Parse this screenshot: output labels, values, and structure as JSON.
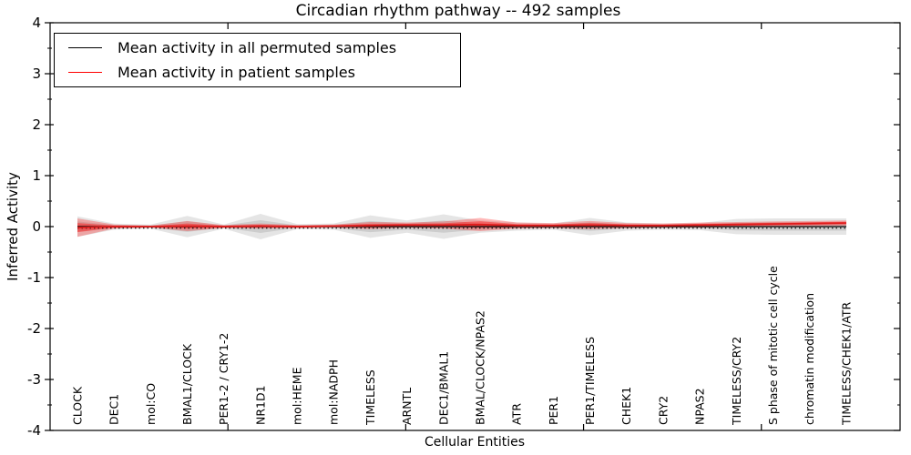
{
  "chart_data": {
    "type": "line",
    "title": "Circadian rhythm pathway -- 492 samples",
    "xlabel": "Cellular Entities",
    "ylabel": "Inferred Activity",
    "ylim": [
      -4,
      4
    ],
    "ytick_labels": [
      "4",
      "3",
      "2",
      "1",
      "0",
      "-1",
      "-2",
      "-3",
      "-4"
    ],
    "ytick_values": [
      4,
      3,
      2,
      1,
      0,
      -1,
      -2,
      -3,
      -4
    ],
    "yminor_values": [
      3.5,
      2.5,
      1.5,
      0.5,
      -0.5,
      -1.5,
      -2.5,
      -3.5
    ],
    "x_numeric_ticks": [
      5,
      10,
      15,
      20
    ],
    "x_numeric_range": [
      0,
      23.9
    ],
    "grid": false,
    "legend_position": "upper left",
    "categories": [
      "CLOCK",
      "DEC1",
      "mol:CO",
      "BMAL1/CLOCK",
      "PER1-2 / CRY1-2",
      "NR1D1",
      "mol:HEME",
      "mol:NADPH",
      "TIMELESS",
      "ARNTL",
      "DEC1/BMAL1",
      "BMAL/CLOCK/NPAS2",
      "ATR",
      "PER1",
      "PER1/TIMELESS",
      "CHEK1",
      "CRY2",
      "NPAS2",
      "TIMELESS/CRY2",
      "S phase of mitotic cell cycle",
      "chromatin modification",
      "TIMELESS/CHEK1/ATR"
    ],
    "series": [
      {
        "name": "Mean activity in all permuted samples",
        "color": "#000000",
        "band_color": "#888888",
        "style": "solid",
        "values": [
          0,
          0,
          0,
          0,
          0,
          0,
          0,
          0,
          0,
          0,
          0,
          0,
          0,
          0,
          0,
          0,
          0,
          0,
          0,
          0,
          0,
          0
        ],
        "band_halfwidth": [
          0.2,
          0.06,
          0.04,
          0.21,
          0.04,
          0.25,
          0.05,
          0.06,
          0.22,
          0.12,
          0.24,
          0.12,
          0.08,
          0.06,
          0.17,
          0.08,
          0.06,
          0.07,
          0.15,
          0.16,
          0.16,
          0.16
        ]
      },
      {
        "name": "Mean activity in patient samples",
        "color": "#e01b1b",
        "band_color": "#ff0000",
        "style": "solid",
        "values": [
          -0.02,
          0,
          0,
          0.01,
          0,
          0.01,
          0,
          0.01,
          0.02,
          0.03,
          0.03,
          0.04,
          0.02,
          0.02,
          0.03,
          0.02,
          0.02,
          0.03,
          0.04,
          0.05,
          0.06,
          0.07
        ],
        "band_halfwidth": [
          0.18,
          0.04,
          0.02,
          0.1,
          0.03,
          0.05,
          0.03,
          0.03,
          0.07,
          0.05,
          0.07,
          0.13,
          0.06,
          0.05,
          0.08,
          0.05,
          0.04,
          0.05,
          0.05,
          0.05,
          0.05,
          0.05
        ]
      },
      {
        "name": "baseline",
        "color": "#000000",
        "style": "dotted",
        "values": [
          -0.03,
          -0.03,
          -0.03,
          -0.03,
          -0.03,
          -0.03,
          -0.03,
          -0.03,
          -0.03,
          -0.03,
          -0.03,
          -0.03,
          -0.03,
          -0.03,
          -0.03,
          -0.03,
          -0.03,
          -0.03,
          -0.03,
          -0.03,
          -0.03,
          -0.03
        ]
      }
    ],
    "legend": [
      {
        "label": "Mean activity in all permuted samples",
        "color": "#000000"
      },
      {
        "label": "Mean activity in patient samples",
        "color": "#ff0000"
      }
    ]
  }
}
